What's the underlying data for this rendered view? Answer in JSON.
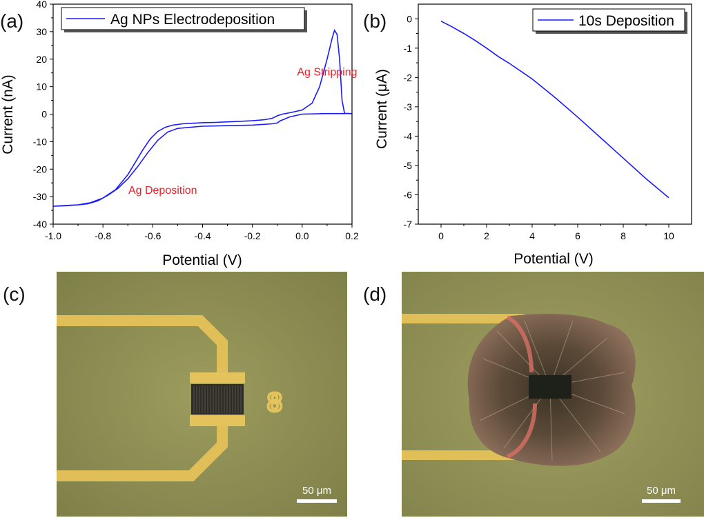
{
  "panels": {
    "a": "(a)",
    "b": "(b)",
    "c": "(c)",
    "d": "(d)"
  },
  "colors": {
    "series": "#1a1aff",
    "annotation": "#ee1c25",
    "substrate": "#9a9a5c",
    "electrode": "#e2c25a"
  },
  "chart_data": [
    {
      "type": "line",
      "panel": "(a)",
      "xlabel": "Potential (V)",
      "ylabel": "Current (nA)",
      "xlim": [
        -1.0,
        0.2
      ],
      "ylim": [
        -40,
        40
      ],
      "xticks": [
        -1.0,
        -0.8,
        -0.6,
        -0.4,
        -0.2,
        0.0,
        0.2
      ],
      "xtick_labels": [
        "-1.0",
        "-0.8",
        "-0.6",
        "-0.4",
        "-0.2",
        "0.0",
        "0.2"
      ],
      "yticks": [
        -40,
        -30,
        -20,
        -10,
        0,
        10,
        20,
        30,
        40
      ],
      "ytick_labels": [
        "-40",
        "-30",
        "-20",
        "-10",
        "0",
        "10",
        "20",
        "30",
        "40"
      ],
      "legend": "top-left",
      "grid": false,
      "series": [
        {
          "name": "Ag NPs Electrodeposition",
          "x": [
            -1.0,
            -0.95,
            -0.9,
            -0.85,
            -0.8,
            -0.75,
            -0.7,
            -0.67,
            -0.64,
            -0.61,
            -0.58,
            -0.55,
            -0.52,
            -0.48,
            -0.44,
            -0.4,
            -0.35,
            -0.3,
            -0.25,
            -0.2,
            -0.15,
            -0.12,
            -0.1,
            -0.08,
            -0.05,
            0.0,
            0.04,
            0.07,
            0.1,
            0.12,
            0.13,
            0.14,
            0.15,
            0.16,
            0.17,
            0.2,
            0.17,
            0.1,
            0.0,
            -0.05,
            -0.09,
            -0.1,
            -0.12,
            -0.2,
            -0.3,
            -0.4,
            -0.5,
            -0.54,
            -0.58,
            -0.62,
            -0.66,
            -0.7,
            -0.74,
            -0.78,
            -0.82,
            -0.86,
            -0.9,
            -0.95,
            -1.0
          ],
          "y": [
            -33.5,
            -33.2,
            -33.0,
            -32.2,
            -30.5,
            -27.5,
            -22.0,
            -17.5,
            -13.0,
            -9.0,
            -6.3,
            -4.8,
            -4.0,
            -3.5,
            -3.3,
            -3.1,
            -3.0,
            -2.8,
            -2.6,
            -2.4,
            -2.0,
            -1.5,
            -0.6,
            0.0,
            0.5,
            1.5,
            4.0,
            10.0,
            20.0,
            27.5,
            30.5,
            29.0,
            20.0,
            5.0,
            0.3,
            0.2,
            0.2,
            0.2,
            0.0,
            -1.0,
            -2.5,
            -3.2,
            -3.5,
            -4.0,
            -4.2,
            -4.4,
            -5.2,
            -6.5,
            -9.5,
            -14.0,
            -19.0,
            -23.5,
            -27.0,
            -29.5,
            -31.5,
            -32.6,
            -33.0,
            -33.3,
            -33.5
          ]
        }
      ],
      "annotations": [
        {
          "text": "Ag Stripping",
          "x": 0.1,
          "y": 14
        },
        {
          "text": "Ag Deposition",
          "x": -0.56,
          "y": -29
        }
      ]
    },
    {
      "type": "line",
      "panel": "(b)",
      "xlabel": "Potential (V)",
      "ylabel": "Current (μA)",
      "xlim": [
        -1,
        11
      ],
      "ylim": [
        -7,
        0.5
      ],
      "xticks": [
        0,
        2,
        4,
        6,
        8,
        10
      ],
      "xtick_labels": [
        "0",
        "2",
        "4",
        "6",
        "8",
        "10"
      ],
      "yticks": [
        0,
        -1,
        -2,
        -3,
        -4,
        -5,
        -6,
        -7
      ],
      "ytick_labels": [
        "0",
        "-1",
        "-2",
        "-3",
        "-4",
        "-5",
        "-6",
        "-7"
      ],
      "legend": "top-right",
      "grid": false,
      "series": [
        {
          "name": "10s Deposition",
          "x": [
            0,
            0.5,
            1,
            1.5,
            2,
            2.5,
            3,
            4,
            5,
            6,
            7,
            8,
            9,
            10
          ],
          "y": [
            -0.08,
            -0.28,
            -0.5,
            -0.74,
            -1.0,
            -1.28,
            -1.52,
            -2.05,
            -2.68,
            -3.35,
            -4.05,
            -4.75,
            -5.45,
            -6.1
          ]
        }
      ]
    }
  ],
  "scale_bars": {
    "c": "50 μm",
    "d": "50 μm"
  },
  "images": {
    "c": {
      "marking": "8"
    }
  }
}
